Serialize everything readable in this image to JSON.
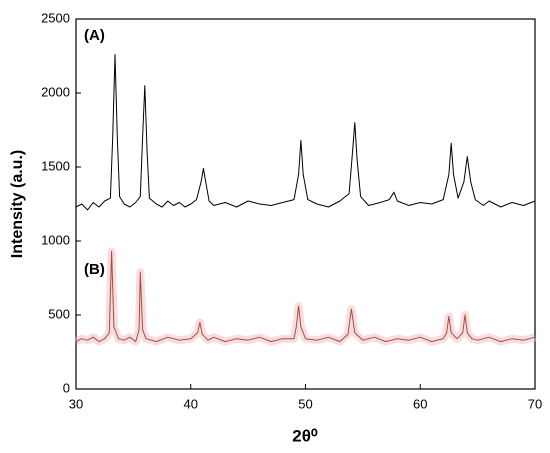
{
  "chart_data": {
    "type": "line",
    "xlabel": "2θ⁰",
    "ylabel": "Intensity (a.u.)",
    "annotations": [
      "(A)",
      "(B)"
    ],
    "xlim": [
      30,
      70
    ],
    "xticks": [
      30,
      40,
      50,
      60,
      70
    ],
    "ylim": [
      0,
      2500
    ],
    "yticks": [
      0,
      500,
      1000,
      1500,
      2000,
      2500
    ],
    "series": [
      {
        "name": "(A)",
        "color": "#000000",
        "x": [
          30,
          30.5,
          31,
          31.5,
          32,
          32.5,
          33,
          33.2,
          33.4,
          33.6,
          33.8,
          34.2,
          34.7,
          35.2,
          35.6,
          35.8,
          36,
          36.2,
          36.4,
          37,
          37.5,
          38,
          38.5,
          39,
          39.5,
          40,
          40.5,
          40.9,
          41.1,
          41.3,
          41.6,
          42,
          43,
          44,
          45,
          46,
          47,
          48,
          49,
          49.4,
          49.6,
          49.8,
          50.2,
          51,
          52,
          53,
          53.8,
          54.1,
          54.3,
          54.5,
          54.8,
          55.5,
          56.5,
          57.3,
          57.7,
          58,
          59,
          60,
          61,
          62,
          62.5,
          62.7,
          62.9,
          63.3,
          63.8,
          64.1,
          64.4,
          64.8,
          65.5,
          66,
          67,
          68,
          69,
          70
        ],
        "values": [
          1230,
          1250,
          1210,
          1260,
          1230,
          1270,
          1290,
          1700,
          2260,
          1700,
          1300,
          1250,
          1230,
          1260,
          1300,
          1700,
          2050,
          1600,
          1290,
          1250,
          1230,
          1270,
          1240,
          1260,
          1230,
          1250,
          1280,
          1400,
          1490,
          1400,
          1270,
          1240,
          1260,
          1230,
          1270,
          1250,
          1240,
          1260,
          1280,
          1450,
          1680,
          1450,
          1280,
          1250,
          1230,
          1270,
          1320,
          1600,
          1800,
          1550,
          1300,
          1240,
          1260,
          1280,
          1330,
          1270,
          1240,
          1260,
          1250,
          1280,
          1450,
          1660,
          1450,
          1290,
          1400,
          1570,
          1400,
          1280,
          1240,
          1270,
          1230,
          1260,
          1240,
          1270
        ]
      },
      {
        "name": "(B)",
        "color": "#a0522d",
        "x": [
          30,
          30.5,
          31,
          31.5,
          32,
          32.5,
          32.9,
          33.1,
          33.3,
          33.7,
          34.2,
          34.7,
          35.2,
          35.5,
          35.6,
          35.8,
          36.1,
          37,
          38,
          39,
          40,
          40.6,
          40.8,
          41,
          41.5,
          42,
          43,
          44,
          45,
          46,
          47,
          48,
          49,
          49.2,
          49.4,
          49.6,
          50,
          51,
          52,
          53,
          53.7,
          54,
          54.3,
          55,
          56,
          57,
          58,
          59,
          60,
          61,
          62,
          62.3,
          62.5,
          62.7,
          63.2,
          63.7,
          63.9,
          64.1,
          64.5,
          65,
          66,
          67,
          68,
          69,
          70
        ],
        "values": [
          320,
          340,
          330,
          350,
          320,
          340,
          380,
          930,
          420,
          340,
          330,
          350,
          320,
          400,
          790,
          400,
          340,
          320,
          350,
          330,
          340,
          380,
          450,
          370,
          330,
          350,
          320,
          340,
          330,
          350,
          320,
          340,
          340,
          420,
          560,
          420,
          340,
          330,
          350,
          320,
          370,
          540,
          380,
          330,
          350,
          320,
          340,
          330,
          350,
          320,
          340,
          380,
          490,
          380,
          340,
          380,
          500,
          380,
          340,
          330,
          350,
          320,
          340,
          330,
          350
        ]
      }
    ]
  }
}
